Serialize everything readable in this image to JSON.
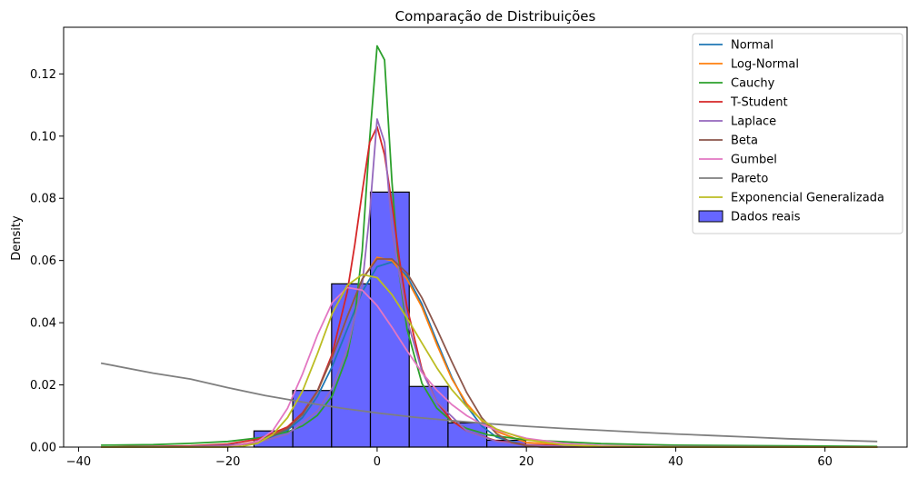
{
  "chart_data": {
    "type": "histogram+line",
    "title": "Comparação de Distribuições",
    "xlabel": "",
    "ylabel": "Density",
    "xlim": [
      -42,
      71
    ],
    "ylim": [
      0,
      0.135
    ],
    "xticks": [
      -40,
      -20,
      0,
      20,
      40,
      60
    ],
    "xtick_labels": [
      "−40",
      "−20",
      "0",
      "20",
      "40",
      "60"
    ],
    "yticks": [
      0.0,
      0.02,
      0.04,
      0.06,
      0.08,
      0.1,
      0.12
    ],
    "ytick_labels": [
      "0.00",
      "0.02",
      "0.04",
      "0.06",
      "0.08",
      "0.10",
      "0.12"
    ],
    "grid": false,
    "legend_position": "top-right",
    "histogram": {
      "name": "Dados reais",
      "color": "#6666ff",
      "edgecolor": "#000000",
      "bin_edges": [
        -16.5,
        -11.3,
        -6.1,
        -0.9,
        4.3,
        9.5,
        14.7,
        19.9
      ],
      "densities": [
        0.0052,
        0.0182,
        0.0525,
        0.082,
        0.0195,
        0.0078,
        0.0022
      ]
    },
    "series": [
      {
        "name": "Normal",
        "color": "#1f77b4",
        "x": [
          -37,
          -20,
          -16,
          -12,
          -10,
          -8,
          -6,
          -4,
          -2,
          0,
          2,
          4,
          6,
          8,
          10,
          12,
          14,
          16,
          20,
          30,
          67
        ],
        "y": [
          0,
          0.0003,
          0.0015,
          0.0055,
          0.0095,
          0.0163,
          0.026,
          0.038,
          0.05,
          0.058,
          0.0595,
          0.055,
          0.046,
          0.034,
          0.0225,
          0.0132,
          0.0068,
          0.0032,
          0.0005,
          0,
          0
        ]
      },
      {
        "name": "Log-Normal",
        "color": "#ff7f0e",
        "x": [
          -37,
          -20,
          -16,
          -12,
          -10,
          -8,
          -6,
          -4,
          -2,
          0,
          2,
          4,
          6,
          8,
          10,
          12,
          14,
          16,
          20,
          30,
          67
        ],
        "y": [
          0,
          0.0004,
          0.0018,
          0.0062,
          0.0105,
          0.0178,
          0.029,
          0.042,
          0.054,
          0.061,
          0.06,
          0.054,
          0.045,
          0.033,
          0.022,
          0.014,
          0.0085,
          0.005,
          0.0015,
          0.0001,
          0
        ]
      },
      {
        "name": "Cauchy",
        "color": "#2ca02c",
        "x": [
          -37,
          -30,
          -25,
          -20,
          -15,
          -12,
          -10,
          -8,
          -6,
          -4,
          -3,
          -2,
          -1,
          0,
          1,
          2,
          3,
          4,
          6,
          8,
          10,
          12,
          15,
          20,
          30,
          40,
          67
        ],
        "y": [
          0.0006,
          0.0008,
          0.0012,
          0.0018,
          0.0032,
          0.0049,
          0.0068,
          0.0102,
          0.0165,
          0.0295,
          0.042,
          0.063,
          0.099,
          0.129,
          0.1245,
          0.085,
          0.055,
          0.038,
          0.0205,
          0.0125,
          0.0083,
          0.006,
          0.0039,
          0.0023,
          0.0011,
          0.0006,
          0.0002
        ]
      },
      {
        "name": "T-Student",
        "color": "#d62728",
        "x": [
          -37,
          -25,
          -20,
          -16,
          -12,
          -10,
          -8,
          -6,
          -4,
          -3,
          -2,
          -1,
          0,
          1,
          2,
          3,
          4,
          6,
          8,
          10,
          12,
          16,
          20,
          30,
          67
        ],
        "y": [
          0,
          0.0004,
          0.001,
          0.0025,
          0.0065,
          0.011,
          0.018,
          0.03,
          0.05,
          0.065,
          0.082,
          0.098,
          0.103,
          0.094,
          0.078,
          0.06,
          0.045,
          0.025,
          0.0145,
          0.0085,
          0.0052,
          0.002,
          0.0008,
          0.0001,
          0
        ]
      },
      {
        "name": "Laplace",
        "color": "#9467bd",
        "x": [
          -37,
          -25,
          -20,
          -16,
          -12,
          -8,
          -6,
          -4,
          -2,
          -1,
          0,
          1,
          2,
          4,
          6,
          8,
          12,
          16,
          20,
          25,
          67
        ],
        "y": [
          0,
          0.0002,
          0.0006,
          0.0015,
          0.0042,
          0.0115,
          0.019,
          0.0315,
          0.052,
          0.075,
          0.1055,
          0.098,
          0.07,
          0.041,
          0.0245,
          0.0145,
          0.0052,
          0.0018,
          0.0006,
          0.0002,
          0
        ]
      },
      {
        "name": "Beta",
        "color": "#8c564b",
        "x": [
          -37,
          -20,
          -16,
          -12,
          -10,
          -8,
          -6,
          -4,
          -2,
          0,
          2,
          4,
          6,
          8,
          10,
          12,
          14,
          16,
          18,
          20,
          22,
          67
        ],
        "y": [
          0,
          0.0002,
          0.0015,
          0.006,
          0.0105,
          0.018,
          0.029,
          0.042,
          0.054,
          0.0605,
          0.0605,
          0.056,
          0.048,
          0.038,
          0.0275,
          0.0175,
          0.0095,
          0.0043,
          0.0015,
          0.0004,
          0,
          0
        ]
      },
      {
        "name": "Gumbel",
        "color": "#e377c2",
        "x": [
          -37,
          -20,
          -16,
          -14,
          -12,
          -10,
          -8,
          -6,
          -4,
          -2,
          0,
          2,
          4,
          6,
          8,
          10,
          12,
          14,
          16,
          20,
          25,
          30,
          40,
          67
        ],
        "y": [
          0,
          0.0001,
          0.0018,
          0.0052,
          0.0125,
          0.0235,
          0.036,
          0.0465,
          0.0513,
          0.0505,
          0.0455,
          0.0385,
          0.031,
          0.024,
          0.0183,
          0.0137,
          0.0101,
          0.0074,
          0.0054,
          0.0028,
          0.0012,
          0.0005,
          0.0001,
          0
        ]
      },
      {
        "name": "Pareto",
        "color": "#7f7f7f",
        "x": [
          -37,
          -30,
          -25,
          -20,
          -15,
          -10,
          -5,
          0,
          5,
          10,
          15,
          20,
          25,
          30,
          35,
          40,
          45,
          50,
          55,
          60,
          67
        ],
        "y": [
          0.027,
          0.0238,
          0.0219,
          0.0191,
          0.0166,
          0.0145,
          0.0126,
          0.011,
          0.0096,
          0.0085,
          0.0075,
          0.0067,
          0.006,
          0.0054,
          0.0048,
          0.0042,
          0.0037,
          0.0032,
          0.0027,
          0.0023,
          0.0018
        ]
      },
      {
        "name": "Exponencial Generalizada",
        "color": "#bcbd22",
        "x": [
          -37,
          -20,
          -18,
          -16,
          -14,
          -12,
          -10,
          -8,
          -6,
          -4,
          -2,
          0,
          2,
          4,
          6,
          8,
          10,
          12,
          14,
          16,
          20,
          25,
          30,
          40,
          67
        ],
        "y": [
          0,
          0,
          0.0003,
          0.0012,
          0.004,
          0.0095,
          0.018,
          0.03,
          0.043,
          0.052,
          0.0555,
          0.0545,
          0.049,
          0.0415,
          0.0335,
          0.0255,
          0.0185,
          0.013,
          0.0088,
          0.0058,
          0.0024,
          0.0007,
          0.0002,
          0,
          0
        ]
      }
    ]
  }
}
